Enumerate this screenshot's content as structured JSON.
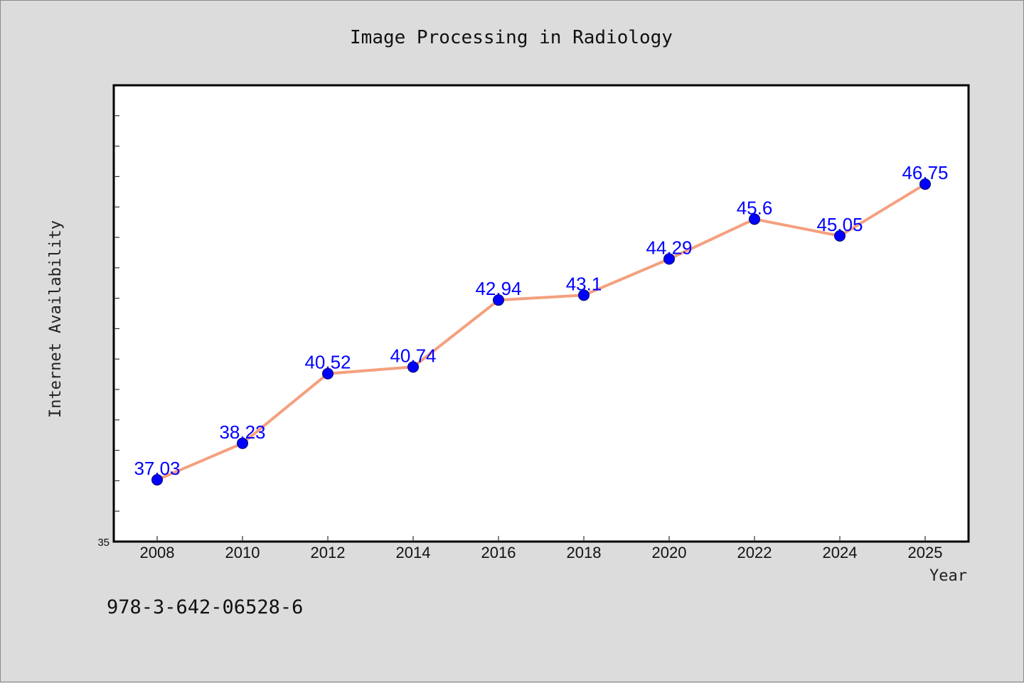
{
  "chart_data": {
    "type": "line",
    "title": "Image Processing in Radiology",
    "xlabel": "Year",
    "ylabel": "Internet Availability",
    "x": [
      "2008",
      "2010",
      "2012",
      "2014",
      "2016",
      "2018",
      "2020",
      "2022",
      "2024",
      "2025"
    ],
    "series": [
      {
        "values": [
          37.03,
          38.23,
          40.52,
          40.74,
          42.94,
          43.1,
          44.29,
          45.6,
          45.05,
          46.75
        ]
      }
    ],
    "data_labels": [
      "37.03",
      "38.23",
      "40.52",
      "40.74",
      "42.94",
      "43.1",
      "44.29",
      "45.6",
      "45.05",
      "46.75"
    ],
    "y_tick_labels": [
      "35"
    ],
    "ylim": [
      35,
      50
    ],
    "grid": false,
    "legend": "none",
    "line_color": "#f4a07e",
    "marker_color": "#0000ff",
    "label_color": "#0000ff"
  },
  "footer": {
    "isbn": "978-3-642-06528-6"
  }
}
